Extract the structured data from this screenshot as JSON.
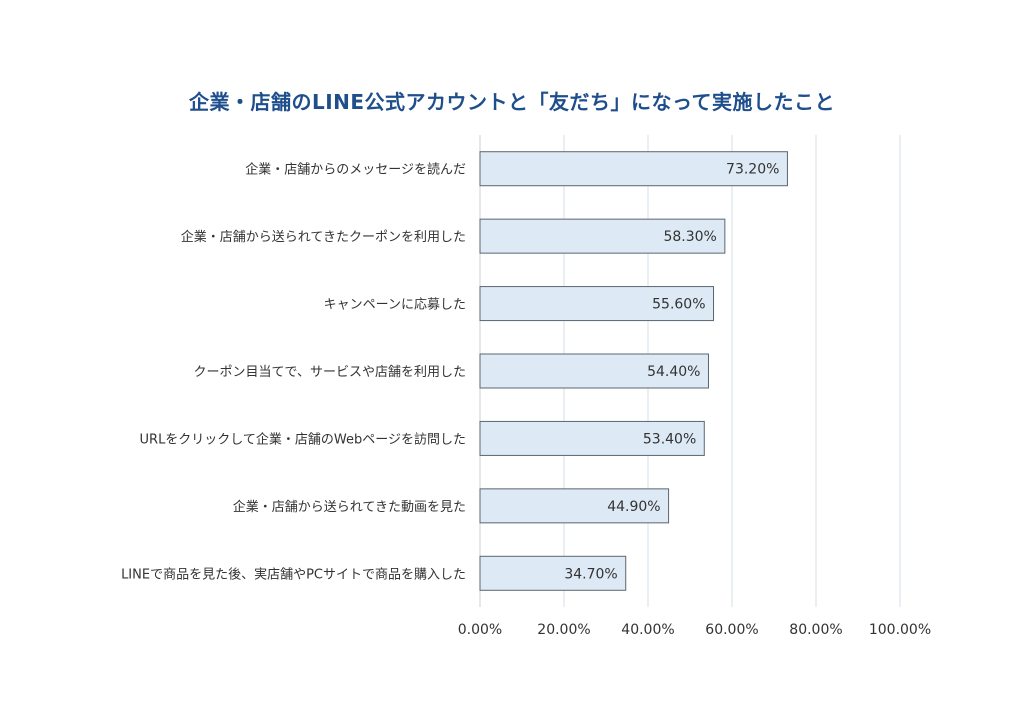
{
  "chart_data": {
    "type": "bar",
    "orientation": "horizontal",
    "title": "企業・店舗のLINE公式アカウントと「友だち」になって実施したこと",
    "categories": [
      "企業・店舗からのメッセージを読んだ",
      "企業・店舗から送られてきたクーポンを利用した",
      "キャンペーンに応募した",
      "クーポン目当てで、サービスや店舗を利用した",
      "URLをクリックして企業・店舗のWebページを訪問した",
      "企業・店舗から送られてきた動画を見た",
      "LINEで商品を見た後、実店舗やPCサイトで商品を購入した"
    ],
    "values": [
      73.2,
      58.3,
      55.6,
      54.4,
      53.4,
      44.9,
      34.7
    ],
    "data_labels": [
      "73.20%",
      "58.30%",
      "55.60%",
      "54.40%",
      "53.40%",
      "44.90%",
      "34.70%"
    ],
    "xlim": [
      0,
      100
    ],
    "x_ticks": [
      0,
      20,
      40,
      60,
      80,
      100
    ],
    "x_tick_labels": [
      "0.00%",
      "20.00%",
      "40.00%",
      "60.00%",
      "80.00%",
      "100.00%"
    ],
    "grid": true,
    "colors": {
      "bar_fill": "#dde9f5",
      "bar_stroke": "#5a6670",
      "title": "#1f4e8c",
      "grid": "#d6dfe8"
    }
  }
}
